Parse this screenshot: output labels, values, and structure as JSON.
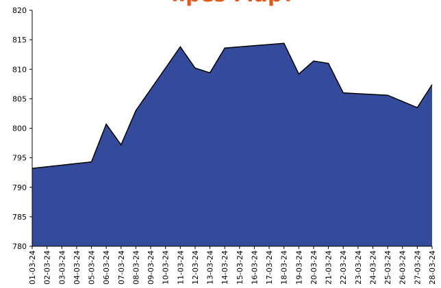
{
  "chart_data": {
    "type": "area",
    "title": "през Март",
    "categories": [
      "01-03-24",
      "02-03-24",
      "03-03-24",
      "04-03-24",
      "05-03-24",
      "06-03-24",
      "07-03-24",
      "08-03-24",
      "09-03-24",
      "10-03-24",
      "11-03-24",
      "12-03-24",
      "13-03-24",
      "14-03-24",
      "15-03-24",
      "16-03-24",
      "17-03-24",
      "18-03-24",
      "19-03-24",
      "20-03-24",
      "21-03-24",
      "22-03-24",
      "23-03-24",
      "24-03-24",
      "25-03-24",
      "26-03-24",
      "27-03-24",
      "28-03-24"
    ],
    "x": [
      "01-03-24",
      "05-03-24",
      "06-03-24",
      "07-03-24",
      "08-03-24",
      "11-03-24",
      "12-03-24",
      "13-03-24",
      "14-03-24",
      "18-03-24",
      "19-03-24",
      "20-03-24",
      "21-03-24",
      "22-03-24",
      "25-03-24",
      "27-03-24",
      "28-03-24"
    ],
    "values": [
      793.2,
      794.3,
      800.7,
      797.2,
      803.0,
      813.8,
      810.2,
      809.4,
      813.6,
      814.4,
      809.2,
      811.4,
      811.0,
      806.0,
      805.6,
      803.5,
      807.4
    ],
    "color": "#344b9b",
    "ylim": [
      780,
      820
    ],
    "yticks": [
      780,
      785,
      790,
      795,
      800,
      805,
      810,
      815,
      820
    ]
  }
}
